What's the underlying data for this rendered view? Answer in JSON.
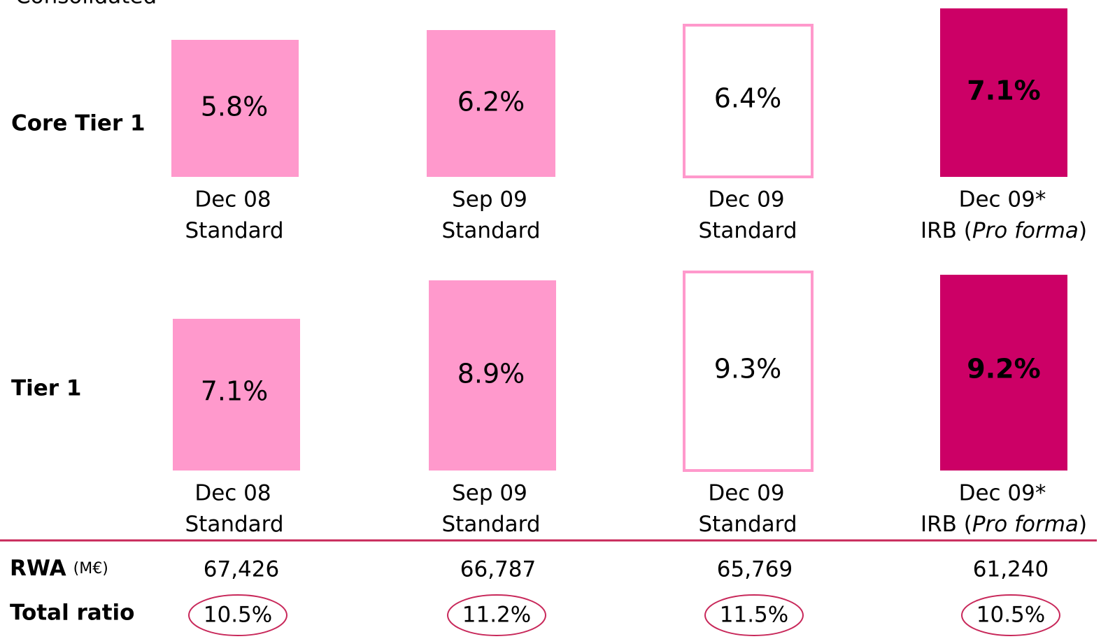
{
  "header": {
    "title": "Consolidated"
  },
  "rows": [
    {
      "label": "Core Tier 1",
      "cells": [
        {
          "value": "5.8%",
          "period": "Dec 08",
          "method": [
            "Standard"
          ],
          "style": "filled"
        },
        {
          "value": "6.2%",
          "period": "Sep 09",
          "method": [
            "Standard"
          ],
          "style": "filled"
        },
        {
          "value": "6.4%",
          "period": "Dec 09",
          "method": [
            "Standard"
          ],
          "style": "outline"
        },
        {
          "value": "7.1%",
          "period": "Dec 09*",
          "method": [
            "IRB (",
            "Pro forma",
            ")"
          ],
          "style": "dark"
        }
      ]
    },
    {
      "label": "Tier 1",
      "cells": [
        {
          "value": "7.1%",
          "period": "Dec 08",
          "method": [
            "Standard"
          ],
          "style": "filled"
        },
        {
          "value": "8.9%",
          "period": "Sep 09",
          "method": [
            "Standard"
          ],
          "style": "filled"
        },
        {
          "value": "9.3%",
          "period": "Dec 09",
          "method": [
            "Standard"
          ],
          "style": "outline"
        },
        {
          "value": "9.2%",
          "period": "Dec 09*",
          "method": [
            "IRB (",
            "Pro forma",
            ")"
          ],
          "style": "dark"
        }
      ]
    }
  ],
  "rwa": {
    "label": "RWA",
    "unit": "(M€)",
    "values": [
      "67,426",
      "66,787",
      "65,769",
      "61,240"
    ]
  },
  "total_ratio": {
    "label": "Total ratio",
    "values": [
      "10.5%",
      "11.2%",
      "11.5%",
      "10.5%"
    ]
  }
}
